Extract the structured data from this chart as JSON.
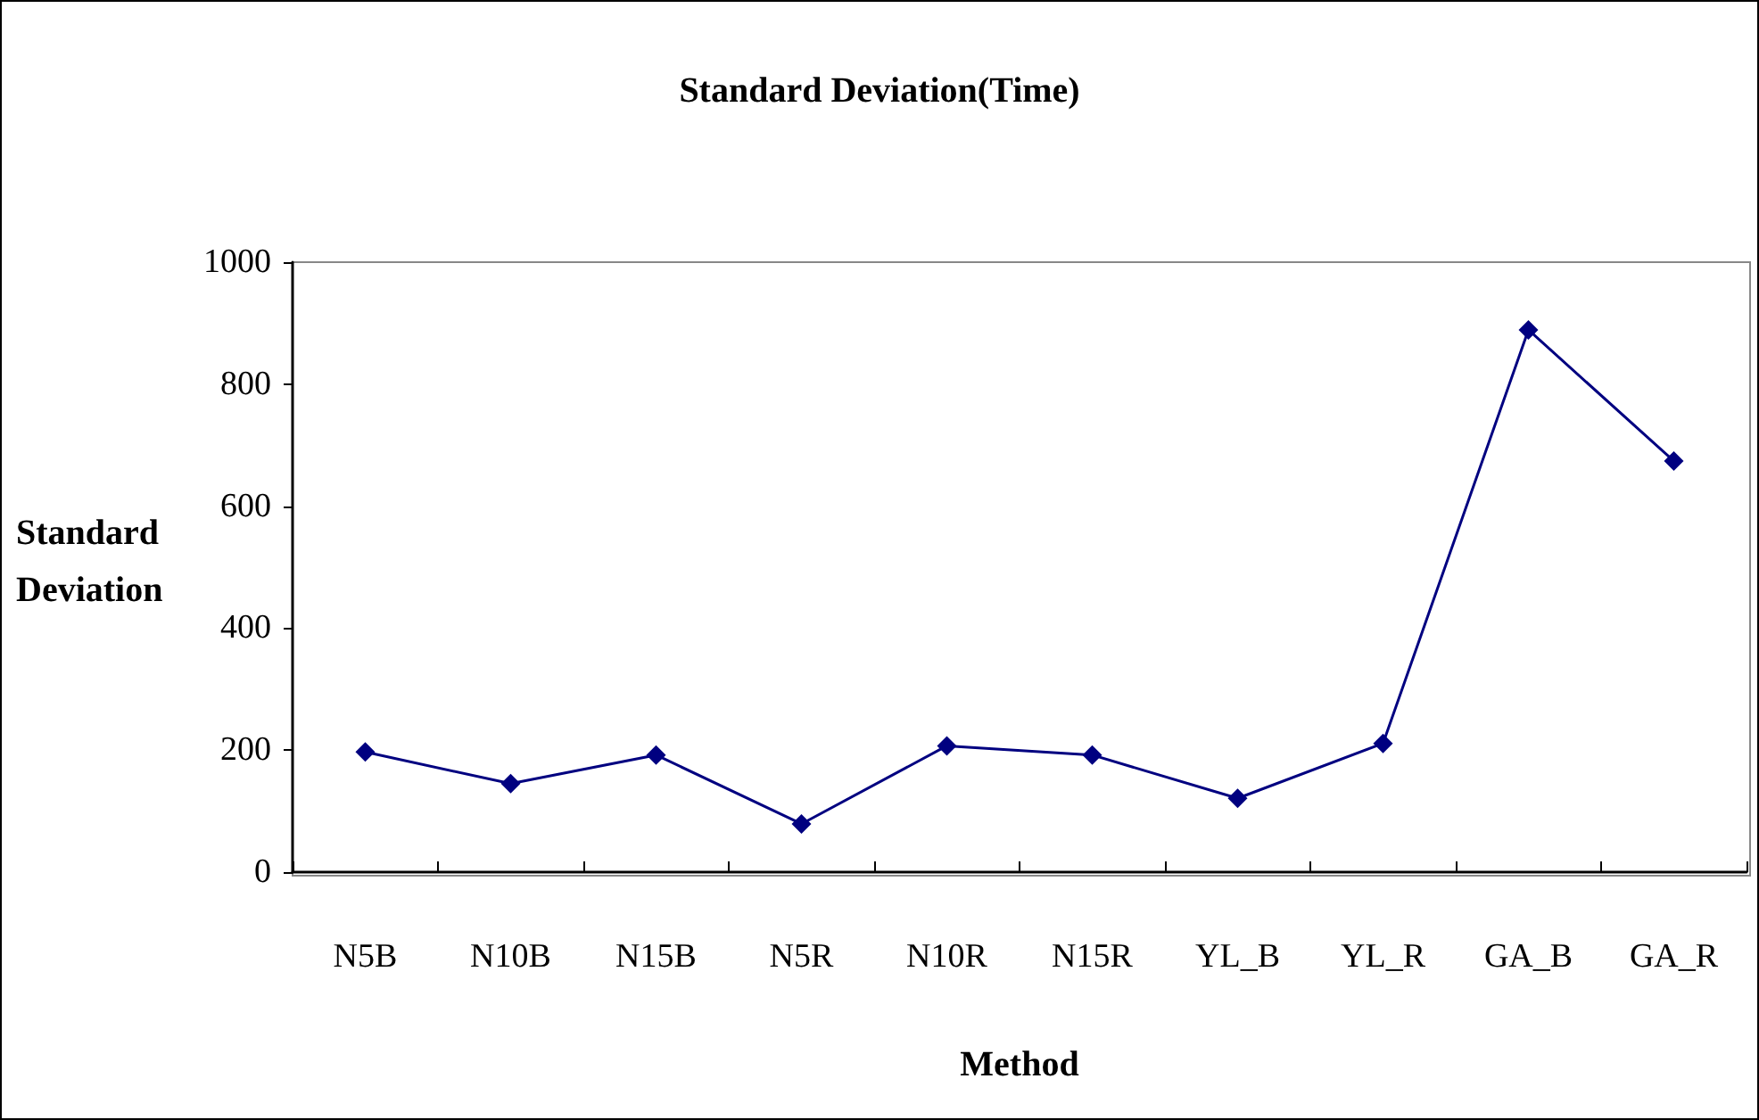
{
  "chart_data": {
    "type": "line",
    "title": "Standard Deviation(Time)",
    "xlabel": "Method",
    "ylabel": "Standard\nDeviation",
    "categories": [
      "N5B",
      "N10B",
      "N15B",
      "N5R",
      "N10R",
      "N15R",
      "YL_B",
      "YL_R",
      "GA_B",
      "GA_R"
    ],
    "series": [
      {
        "color": "#000080",
        "values": [
          197,
          145,
          192,
          79,
          207,
          192,
          121,
          211,
          889,
          674
        ]
      }
    ],
    "ylim": [
      0,
      1000
    ],
    "yticks": [
      0,
      200,
      400,
      600,
      800,
      1000
    ],
    "grid": false,
    "marker": "diamond",
    "line_style": "solid"
  }
}
